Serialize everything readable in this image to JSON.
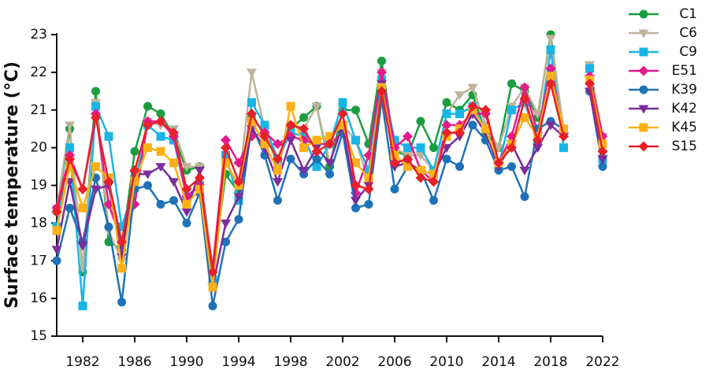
{
  "chart_data": {
    "type": "line",
    "y_label": "Surface temperature  (°C)",
    "x": [
      1980,
      1981,
      1982,
      1983,
      1984,
      1985,
      1986,
      1987,
      1988,
      1989,
      1990,
      1991,
      1992,
      1993,
      1994,
      1995,
      1996,
      1997,
      1998,
      1999,
      2000,
      2001,
      2002,
      2003,
      2004,
      2005,
      2006,
      2007,
      2008,
      2009,
      2010,
      2011,
      2012,
      2013,
      2014,
      2015,
      2016,
      2017,
      2018,
      2019,
      2020,
      2021,
      2022
    ],
    "xlim": [
      1980,
      2022
    ],
    "xticks": [
      1982,
      1986,
      1990,
      1994,
      1998,
      2002,
      2006,
      2010,
      2014,
      2018,
      2022
    ],
    "ylim": [
      15,
      23
    ],
    "yticks": [
      15,
      16,
      17,
      18,
      19,
      20,
      21,
      22,
      23
    ],
    "legend": "right",
    "series": [
      {
        "name": "C1",
        "color": "#1a9e3f",
        "marker": "circle",
        "values": [
          18.3,
          20.5,
          16.7,
          21.5,
          17.5,
          17.3,
          19.9,
          21.1,
          20.9,
          20.3,
          19.4,
          19.5,
          16.7,
          19.3,
          18.8,
          20.8,
          20.4,
          19.7,
          20.5,
          20.8,
          21.1,
          19.5,
          21.0,
          21.0,
          20.1,
          22.3,
          19.9,
          19.8,
          20.7,
          20.0,
          21.2,
          21.0,
          21.4,
          20.4,
          20.0,
          21.7,
          21.5,
          20.8,
          23.0,
          20.4,
          null,
          22.1,
          19.7
        ]
      },
      {
        "name": "C6",
        "color": "#bfb39a",
        "marker": "triangle-down",
        "values": [
          18.4,
          20.6,
          16.8,
          21.2,
          17.8,
          17.0,
          19.3,
          20.7,
          20.6,
          20.5,
          19.5,
          19.5,
          16.8,
          19.6,
          19.0,
          22.0,
          20.5,
          19.5,
          20.6,
          20.5,
          21.1,
          19.6,
          20.6,
          20.2,
          19.1,
          22.0,
          20.0,
          19.8,
          19.8,
          19.4,
          20.9,
          21.4,
          21.6,
          20.6,
          20.0,
          21.1,
          21.6,
          20.9,
          22.9,
          20.5,
          null,
          22.2,
          20.3
        ]
      },
      {
        "name": "C9",
        "color": "#19b5e6",
        "marker": "square",
        "values": [
          17.9,
          20.0,
          15.8,
          21.1,
          20.3,
          17.9,
          19.0,
          20.6,
          20.3,
          20.2,
          18.7,
          19.0,
          16.5,
          19.8,
          18.6,
          21.2,
          20.6,
          19.7,
          20.4,
          20.3,
          19.5,
          20.1,
          21.2,
          20.2,
          19.4,
          21.8,
          20.2,
          20.0,
          20.0,
          19.4,
          20.9,
          20.9,
          21.1,
          20.5,
          19.5,
          21.0,
          21.2,
          20.2,
          22.6,
          20.0,
          null,
          22.1,
          19.7
        ]
      },
      {
        "name": "E51",
        "color": "#e6198c",
        "marker": "diamond",
        "values": [
          18.4,
          19.8,
          18.9,
          20.9,
          18.5,
          17.5,
          18.5,
          20.7,
          20.7,
          20.3,
          18.7,
          19.0,
          16.8,
          20.2,
          19.6,
          20.3,
          20.4,
          20.1,
          20.3,
          20.2,
          20.1,
          20.1,
          20.4,
          18.8,
          19.8,
          22.0,
          20.0,
          20.3,
          19.4,
          19.1,
          20.6,
          20.6,
          20.9,
          20.9,
          19.6,
          20.3,
          21.6,
          20.4,
          22.1,
          20.4,
          null,
          21.9,
          20.3
        ]
      },
      {
        "name": "K39",
        "color": "#1f72b8",
        "marker": "circle",
        "values": [
          17.0,
          18.4,
          17.5,
          19.2,
          17.9,
          15.9,
          18.9,
          19.0,
          18.5,
          18.6,
          18.0,
          18.8,
          15.8,
          17.5,
          18.1,
          20.6,
          19.8,
          18.6,
          19.7,
          19.3,
          19.7,
          19.3,
          20.4,
          18.4,
          18.5,
          21.3,
          18.9,
          19.5,
          19.4,
          18.6,
          19.7,
          19.5,
          20.6,
          20.2,
          19.4,
          19.5,
          18.7,
          20.5,
          20.7,
          20.5,
          null,
          21.5,
          19.5
        ]
      },
      {
        "name": "K42",
        "color": "#7b2d99",
        "marker": "triangle-down",
        "values": [
          17.3,
          19.1,
          17.4,
          18.9,
          19.0,
          17.1,
          19.3,
          19.3,
          19.5,
          19.1,
          18.3,
          19.4,
          16.3,
          18.0,
          18.7,
          20.5,
          20.0,
          19.1,
          20.2,
          19.4,
          20.0,
          19.6,
          20.6,
          18.6,
          19.0,
          21.7,
          19.5,
          19.6,
          19.4,
          19.3,
          20.0,
          20.3,
          20.9,
          20.4,
          19.5,
          20.1,
          19.4,
          20.0,
          20.6,
          20.3,
          null,
          21.5,
          19.7
        ]
      },
      {
        "name": "K45",
        "color": "#fbb116",
        "marker": "square",
        "values": [
          17.8,
          19.5,
          18.4,
          19.5,
          19.2,
          16.8,
          19.1,
          20.0,
          19.9,
          19.6,
          18.5,
          18.9,
          16.3,
          19.6,
          19.0,
          20.7,
          20.1,
          19.4,
          21.1,
          20.0,
          20.2,
          20.3,
          20.6,
          19.6,
          19.2,
          21.6,
          19.8,
          19.5,
          19.4,
          19.3,
          20.3,
          20.5,
          21.0,
          20.5,
          19.6,
          20.1,
          20.8,
          20.3,
          21.9,
          20.5,
          null,
          21.8,
          20.1
        ]
      },
      {
        "name": "S15",
        "color": "#e8202a",
        "marker": "diamond",
        "values": [
          18.3,
          19.7,
          18.9,
          20.8,
          19.1,
          17.5,
          19.4,
          20.6,
          20.7,
          20.4,
          18.9,
          19.2,
          16.7,
          20.0,
          19.1,
          20.9,
          20.3,
          19.7,
          20.6,
          20.5,
          19.9,
          20.1,
          20.9,
          19.0,
          18.9,
          21.5,
          19.6,
          19.7,
          19.2,
          19.1,
          20.4,
          20.4,
          21.1,
          21.0,
          19.6,
          20.0,
          21.3,
          20.2,
          21.7,
          20.3,
          null,
          21.7,
          19.9
        ]
      }
    ]
  }
}
